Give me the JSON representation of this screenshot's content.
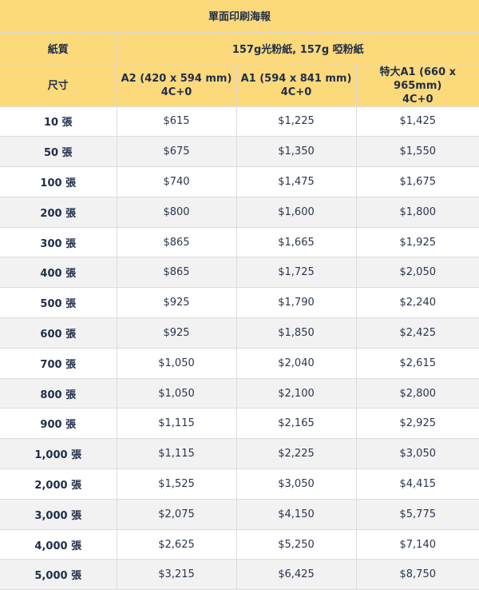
{
  "title": "單面印刷海報",
  "paper": {
    "label": "紙質",
    "value": "157g光粉紙, 157g 啞粉紙"
  },
  "size_header": {
    "label": "尺寸",
    "columns": [
      {
        "name": "A2 (420 x 594 mm)",
        "color": "4C+0"
      },
      {
        "name": "A1 (594 x 841 mm)",
        "color": "4C+0"
      },
      {
        "name": "特大A1 (660 x 965mm)",
        "color": "4C+0"
      }
    ]
  },
  "rows": [
    {
      "qty": "10 張",
      "prices": [
        "$615",
        "$1,225",
        "$1,425"
      ]
    },
    {
      "qty": "50 張",
      "prices": [
        "$675",
        "$1,350",
        "$1,550"
      ]
    },
    {
      "qty": "100 張",
      "prices": [
        "$740",
        "$1,475",
        "$1,675"
      ]
    },
    {
      "qty": "200 張",
      "prices": [
        "$800",
        "$1,600",
        "$1,800"
      ]
    },
    {
      "qty": "300 張",
      "prices": [
        "$865",
        "$1,665",
        "$1,925"
      ]
    },
    {
      "qty": "400 張",
      "prices": [
        "$865",
        "$1,725",
        "$2,050"
      ]
    },
    {
      "qty": "500 張",
      "prices": [
        "$925",
        "$1,790",
        "$2,240"
      ]
    },
    {
      "qty": "600 張",
      "prices": [
        "$925",
        "$1,850",
        "$2,425"
      ]
    },
    {
      "qty": "700 張",
      "prices": [
        "$1,050",
        "$2,040",
        "$2,615"
      ]
    },
    {
      "qty": "800 張",
      "prices": [
        "$1,050",
        "$2,100",
        "$2,800"
      ]
    },
    {
      "qty": "900 張",
      "prices": [
        "$1,115",
        "$2,165",
        "$2,925"
      ]
    },
    {
      "qty": "1,000 張",
      "prices": [
        "$1,115",
        "$2,225",
        "$3,050"
      ]
    },
    {
      "qty": "2,000 張",
      "prices": [
        "$1,525",
        "$3,050",
        "$4,415"
      ]
    },
    {
      "qty": "3,000 張",
      "prices": [
        "$2,075",
        "$4,150",
        "$5,775"
      ]
    },
    {
      "qty": "4,000 張",
      "prices": [
        "$2,625",
        "$5,250",
        "$7,140"
      ]
    },
    {
      "qty": "5,000 張",
      "prices": [
        "$3,215",
        "$6,425",
        "$8,750"
      ]
    }
  ],
  "colors": {
    "header_bg": "#fcd97a",
    "stripe_bg": "#f2f2f2",
    "text": "#1f2d4a"
  }
}
